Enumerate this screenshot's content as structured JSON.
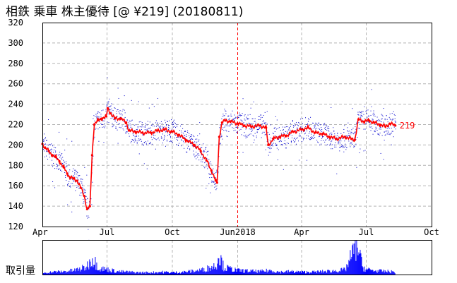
{
  "title": "相鉄 乗車  株主優待  [@ ¥219] (20180811)",
  "volume_label": "取引量",
  "colors": {
    "price_line": "#ff0000",
    "intraday_dots": "#0000cc",
    "volume_bars": "#0000ff",
    "grid": "#b4b4b4",
    "year_marker": "#ff0000"
  },
  "chart_data": {
    "type": "line",
    "y_ticks": [
      "120",
      "140",
      "160",
      "180",
      "200",
      "220",
      "240",
      "260",
      "280",
      "300",
      "320"
    ],
    "ylim": [
      120,
      320
    ],
    "x_ticks": [
      "Apr",
      "Jul",
      "Oct",
      "Jun2018",
      "Apr",
      "Jul",
      "Oct"
    ],
    "xlim": [
      "2017-04-01",
      "2018-10-01"
    ],
    "year_marker_date": "2018-01-01",
    "last_value": 219,
    "last_value_label": "219",
    "grid": true,
    "series": [
      {
        "type": "line",
        "points": [
          [
            "2017-04-01",
            201
          ],
          [
            "2017-04-05",
            197
          ],
          [
            "2017-04-10",
            194
          ],
          [
            "2017-04-15",
            190
          ],
          [
            "2017-04-20",
            188
          ],
          [
            "2017-04-25",
            184
          ],
          [
            "2017-05-01",
            178
          ],
          [
            "2017-05-06",
            172
          ],
          [
            "2017-05-10",
            168
          ],
          [
            "2017-05-15",
            167
          ],
          [
            "2017-05-20",
            165
          ],
          [
            "2017-05-25",
            158
          ],
          [
            "2017-05-30",
            150
          ],
          [
            "2017-06-03",
            137
          ],
          [
            "2017-06-07",
            140
          ],
          [
            "2017-06-10",
            190
          ],
          [
            "2017-06-13",
            220
          ],
          [
            "2017-06-18",
            224
          ],
          [
            "2017-06-24",
            226
          ],
          [
            "2017-06-30",
            228
          ],
          [
            "2017-07-02",
            236
          ],
          [
            "2017-07-06",
            231
          ],
          [
            "2017-07-12",
            226
          ],
          [
            "2017-07-20",
            226
          ],
          [
            "2017-07-28",
            222
          ],
          [
            "2017-08-01",
            214
          ],
          [
            "2017-08-10",
            213
          ],
          [
            "2017-08-20",
            212
          ],
          [
            "2017-09-01",
            212
          ],
          [
            "2017-09-10",
            214
          ],
          [
            "2017-09-20",
            215
          ],
          [
            "2017-10-01",
            213
          ],
          [
            "2017-10-10",
            210
          ],
          [
            "2017-10-20",
            205
          ],
          [
            "2017-11-01",
            200
          ],
          [
            "2017-11-10",
            194
          ],
          [
            "2017-11-18",
            185
          ],
          [
            "2017-11-25",
            175
          ],
          [
            "2017-12-01",
            165
          ],
          [
            "2017-12-03",
            163
          ],
          [
            "2017-12-06",
            208
          ],
          [
            "2017-12-10",
            222
          ],
          [
            "2017-12-15",
            224
          ],
          [
            "2017-12-22",
            223
          ],
          [
            "2018-01-01",
            221
          ],
          [
            "2018-01-10",
            219
          ],
          [
            "2018-01-20",
            218
          ],
          [
            "2018-02-01",
            219
          ],
          [
            "2018-02-10",
            217
          ],
          [
            "2018-02-13",
            200
          ],
          [
            "2018-02-20",
            206
          ],
          [
            "2018-03-01",
            208
          ],
          [
            "2018-03-10",
            209
          ],
          [
            "2018-03-20",
            213
          ],
          [
            "2018-04-01",
            215
          ],
          [
            "2018-04-10",
            217
          ],
          [
            "2018-04-20",
            212
          ],
          [
            "2018-05-01",
            211
          ],
          [
            "2018-05-10",
            208
          ],
          [
            "2018-05-20",
            206
          ],
          [
            "2018-06-01",
            208
          ],
          [
            "2018-06-10",
            206
          ],
          [
            "2018-06-15",
            205
          ],
          [
            "2018-06-20",
            225
          ],
          [
            "2018-06-28",
            223
          ],
          [
            "2018-07-05",
            224
          ],
          [
            "2018-07-12",
            222
          ],
          [
            "2018-07-20",
            220
          ],
          [
            "2018-07-28",
            218
          ],
          [
            "2018-08-03",
            221
          ],
          [
            "2018-08-11",
            219
          ]
        ]
      },
      {
        "type": "volume",
        "note_units": "relative",
        "points": [
          [
            "2017-04-01",
            3
          ],
          [
            "2017-04-15",
            5
          ],
          [
            "2017-05-01",
            6
          ],
          [
            "2017-05-15",
            8
          ],
          [
            "2017-06-01",
            14
          ],
          [
            "2017-06-10",
            32
          ],
          [
            "2017-06-20",
            12
          ],
          [
            "2017-07-01",
            10
          ],
          [
            "2017-07-15",
            6
          ],
          [
            "2017-08-01",
            5
          ],
          [
            "2017-08-15",
            4
          ],
          [
            "2017-09-01",
            4
          ],
          [
            "2017-09-15",
            5
          ],
          [
            "2017-10-01",
            4
          ],
          [
            "2017-10-15",
            5
          ],
          [
            "2017-11-01",
            7
          ],
          [
            "2017-11-15",
            10
          ],
          [
            "2017-12-01",
            18
          ],
          [
            "2017-12-05",
            40
          ],
          [
            "2017-12-12",
            14
          ],
          [
            "2018-01-01",
            8
          ],
          [
            "2018-01-15",
            7
          ],
          [
            "2018-02-01",
            6
          ],
          [
            "2018-02-15",
            8
          ],
          [
            "2018-03-01",
            5
          ],
          [
            "2018-03-15",
            6
          ],
          [
            "2018-04-01",
            5
          ],
          [
            "2018-04-15",
            5
          ],
          [
            "2018-05-01",
            6
          ],
          [
            "2018-05-15",
            7
          ],
          [
            "2018-06-01",
            9
          ],
          [
            "2018-06-18",
            62
          ],
          [
            "2018-06-25",
            16
          ],
          [
            "2018-07-01",
            10
          ],
          [
            "2018-07-15",
            7
          ],
          [
            "2018-08-01",
            6
          ],
          [
            "2018-08-11",
            5
          ]
        ]
      }
    ]
  }
}
